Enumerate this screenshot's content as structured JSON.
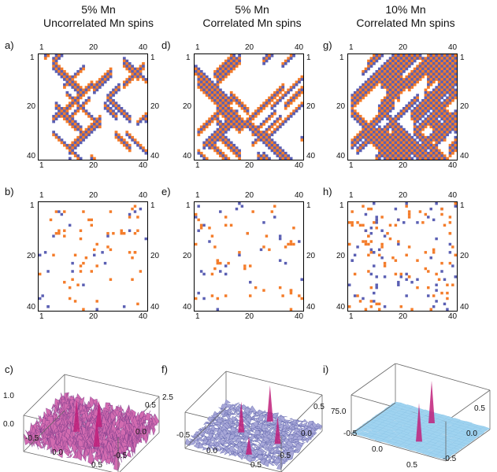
{
  "columns": [
    {
      "title_line1": "5% Mn",
      "title_line2": "Uncorrelated Mn spins"
    },
    {
      "title_line1": "5% Mn",
      "title_line2": "Correlated Mn spins"
    },
    {
      "title_line1": "10% Mn",
      "title_line2": "Correlated Mn spins"
    }
  ],
  "panel_labels": [
    "a)",
    "b)",
    "c)",
    "d)",
    "e)",
    "f)",
    "g)",
    "h)",
    "i)"
  ],
  "lattice_ticks": {
    "min": "1",
    "mid": "20",
    "max": "40"
  },
  "surface_axes": {
    "c": {
      "z_tick": "1.0",
      "xy_ticks": [
        "-0.5",
        "0.0",
        "0.5"
      ]
    },
    "f": {
      "z_tick": "2.5",
      "xy_ticks": [
        "-0.5",
        "0.0",
        "0.5"
      ]
    },
    "i": {
      "z_tick": "75.0",
      "xy_ticks": [
        "-0.5",
        "0.0",
        "0.5"
      ]
    }
  },
  "colors": {
    "spin_up": "#f47c2a",
    "spin_down": "#5a5fb3",
    "surface_c": "#d26bb0",
    "surface_f": "#a8a8d8",
    "surface_i": "#9fd3f0",
    "peak": "#c0207a"
  },
  "lattice_size": 40
}
